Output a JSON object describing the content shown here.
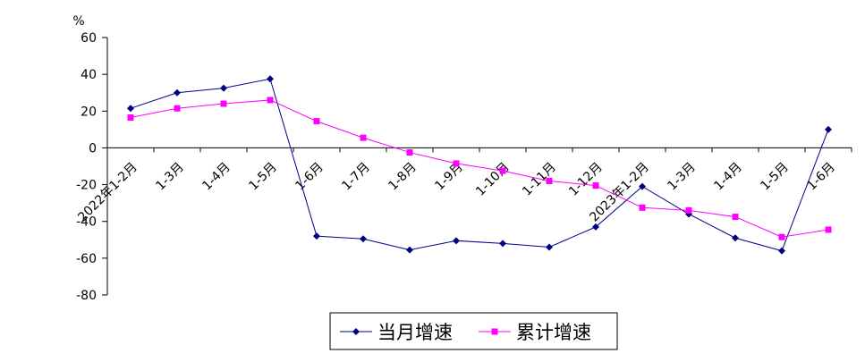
{
  "chart_data": {
    "type": "line",
    "ylabel": "%",
    "ylim": [
      -80,
      60
    ],
    "yticks": [
      60,
      40,
      20,
      0,
      -20,
      -40,
      -60,
      -80
    ],
    "categories": [
      "2022年1-2月",
      "1-3月",
      "1-4月",
      "1-5月",
      "1-6月",
      "1-7月",
      "1-8月",
      "1-9月",
      "1-10月",
      "1-11月",
      "1-12月",
      "2023年1-2月",
      "1-3月",
      "1-4月",
      "1-5月",
      "1-6月"
    ],
    "series": [
      {
        "name": "当月增速",
        "color": "#000080",
        "marker": "diamond",
        "values": [
          21.5,
          30.0,
          32.5,
          37.5,
          -48.0,
          -49.5,
          -55.5,
          -50.5,
          -52.0,
          -54.0,
          -43.0,
          -21.0,
          -36.0,
          -49.0,
          -56.0,
          10.0
        ]
      },
      {
        "name": "累计增速",
        "color": "#FF00FF",
        "marker": "square",
        "values": [
          16.5,
          21.5,
          24.0,
          26.0,
          14.5,
          5.5,
          -2.5,
          -8.5,
          -12.5,
          -18.0,
          -20.5,
          -32.5,
          -34.0,
          -37.5,
          -48.5,
          -44.5
        ]
      }
    ],
    "legend_position": "bottom",
    "grid": false
  }
}
